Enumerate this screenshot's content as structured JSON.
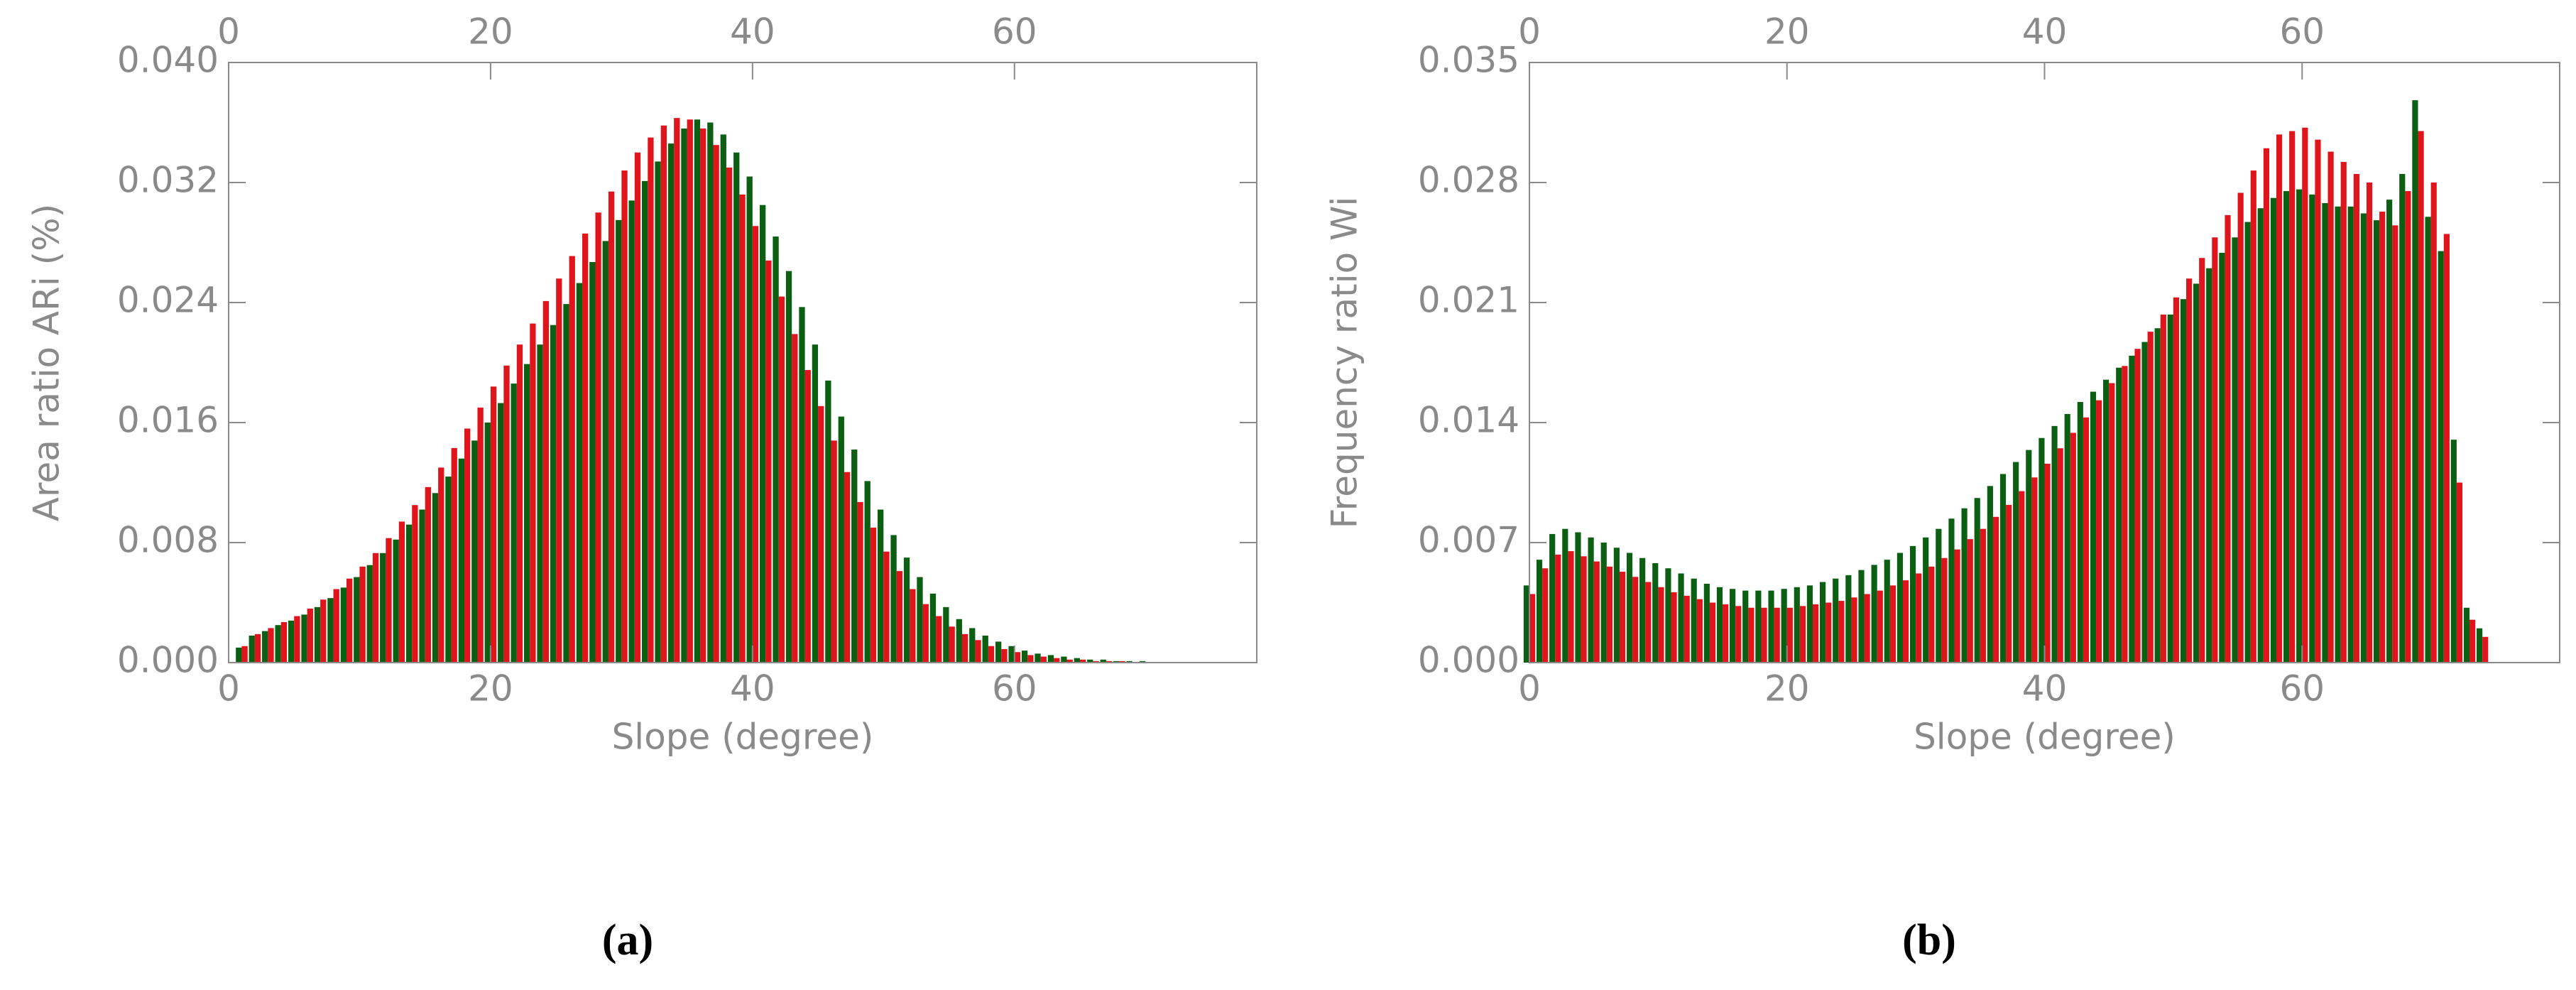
{
  "chart_data": [
    {
      "type": "bar",
      "panel_label": "(a)",
      "x_label": "Slope (degree)",
      "y_label": "Area ratio ARi (%)",
      "x": [
        1,
        2,
        3,
        4,
        5,
        6,
        7,
        8,
        9,
        10,
        11,
        12,
        13,
        14,
        15,
        16,
        17,
        18,
        19,
        20,
        21,
        22,
        23,
        24,
        25,
        26,
        27,
        28,
        29,
        30,
        31,
        32,
        33,
        34,
        35,
        36,
        37,
        38,
        39,
        40,
        41,
        42,
        43,
        44,
        45,
        46,
        47,
        48,
        49,
        50,
        51,
        52,
        53,
        54,
        55,
        56,
        57,
        58,
        59,
        60,
        61,
        62,
        63,
        64,
        65,
        66,
        67,
        68,
        69,
        70,
        71,
        72,
        73
      ],
      "series": [
        {
          "color": "#0b5f12",
          "values": [
            0.001,
            0.0018,
            0.0021,
            0.0025,
            0.0028,
            0.0032,
            0.0037,
            0.0043,
            0.005,
            0.0057,
            0.0065,
            0.0073,
            0.0082,
            0.0092,
            0.0102,
            0.0113,
            0.0124,
            0.0136,
            0.0148,
            0.016,
            0.0173,
            0.0186,
            0.0199,
            0.0212,
            0.0225,
            0.0239,
            0.0253,
            0.0267,
            0.0281,
            0.0295,
            0.0308,
            0.0321,
            0.0334,
            0.0346,
            0.0356,
            0.0362,
            0.036,
            0.0352,
            0.034,
            0.0324,
            0.0305,
            0.0284,
            0.0261,
            0.0237,
            0.0212,
            0.0188,
            0.0164,
            0.0142,
            0.0121,
            0.0102,
            0.0085,
            0.007,
            0.0057,
            0.0046,
            0.0037,
            0.0029,
            0.0023,
            0.0018,
            0.0014,
            0.0011,
            0.0008,
            0.0006,
            0.0005,
            0.0004,
            0.0003,
            0.0002,
            0.0002,
            0.0001,
            0.0001,
            0.0001,
            0,
            0,
            0
          ]
        },
        {
          "color": "#e0141b",
          "values": [
            0.0011,
            0.0019,
            0.0023,
            0.0027,
            0.0031,
            0.0036,
            0.0042,
            0.0049,
            0.0056,
            0.0064,
            0.0073,
            0.0083,
            0.0094,
            0.0105,
            0.0117,
            0.013,
            0.0143,
            0.0156,
            0.017,
            0.0184,
            0.0198,
            0.0212,
            0.0226,
            0.0241,
            0.0256,
            0.0271,
            0.0286,
            0.03,
            0.0314,
            0.0328,
            0.034,
            0.035,
            0.0358,
            0.0363,
            0.0362,
            0.0356,
            0.0345,
            0.033,
            0.0312,
            0.0291,
            0.0268,
            0.0244,
            0.0219,
            0.0195,
            0.0171,
            0.0148,
            0.0127,
            0.0107,
            0.009,
            0.0074,
            0.0061,
            0.0049,
            0.0039,
            0.0031,
            0.0024,
            0.0019,
            0.0015,
            0.0011,
            0.0009,
            0.0007,
            0.0005,
            0.0004,
            0.0003,
            0.0002,
            0.0002,
            0.0001,
            0.0001,
            0.0001,
            0,
            0,
            0,
            0,
            0
          ]
        }
      ],
      "xlim": [
        0,
        78.5
      ],
      "xticks": [
        0,
        20,
        40,
        60
      ],
      "ylim": [
        0,
        0.04
      ],
      "yticks": [
        {
          "value": 0,
          "label": "0.000"
        },
        {
          "value": 0.008,
          "label": "0.008"
        },
        {
          "value": 0.016,
          "label": "0.016"
        },
        {
          "value": 0.024,
          "label": "0.024"
        },
        {
          "value": 0.032,
          "label": "0.032"
        },
        {
          "value": 0.04,
          "label": "0.040"
        }
      ]
    },
    {
      "type": "bar",
      "panel_label": "(b)",
      "x_label": "Slope (degree)",
      "y_label": "Frequency ratio Wi",
      "x": [
        0,
        1,
        2,
        3,
        4,
        5,
        6,
        7,
        8,
        9,
        10,
        11,
        12,
        13,
        14,
        15,
        16,
        17,
        18,
        19,
        20,
        21,
        22,
        23,
        24,
        25,
        26,
        27,
        28,
        29,
        30,
        31,
        32,
        33,
        34,
        35,
        36,
        37,
        38,
        39,
        40,
        41,
        42,
        43,
        44,
        45,
        46,
        47,
        48,
        49,
        50,
        51,
        52,
        53,
        54,
        55,
        56,
        57,
        58,
        59,
        60,
        61,
        62,
        63,
        64,
        65,
        66,
        67,
        68,
        69,
        70,
        71,
        72,
        73,
        74
      ],
      "series": [
        {
          "color": "#0b5f12",
          "values": [
            0.0045,
            0.006,
            0.0075,
            0.0078,
            0.0076,
            0.0073,
            0.007,
            0.0067,
            0.0064,
            0.0061,
            0.0058,
            0.0055,
            0.0052,
            0.0049,
            0.0046,
            0.0044,
            0.0043,
            0.0042,
            0.0042,
            0.0042,
            0.0043,
            0.0044,
            0.0045,
            0.0047,
            0.0049,
            0.0051,
            0.0054,
            0.0057,
            0.006,
            0.0064,
            0.0068,
            0.0073,
            0.0078,
            0.0084,
            0.009,
            0.0096,
            0.0103,
            0.011,
            0.0117,
            0.0124,
            0.0131,
            0.0138,
            0.0145,
            0.0152,
            0.0158,
            0.0165,
            0.0172,
            0.0179,
            0.0187,
            0.0195,
            0.0203,
            0.0212,
            0.0221,
            0.023,
            0.0239,
            0.0248,
            0.0257,
            0.0265,
            0.0271,
            0.0275,
            0.0276,
            0.0273,
            0.0268,
            0.0266,
            0.0266,
            0.0262,
            0.0258,
            0.027,
            0.0285,
            0.0328,
            0.026,
            0.024,
            0.013,
            0.0032,
            0.002
          ]
        },
        {
          "color": "#e0141b",
          "values": [
            0.004,
            0.0055,
            0.0063,
            0.0065,
            0.0062,
            0.0059,
            0.0056,
            0.0053,
            0.005,
            0.0047,
            0.0044,
            0.0041,
            0.0039,
            0.0037,
            0.0035,
            0.0034,
            0.0033,
            0.0032,
            0.0032,
            0.0032,
            0.0032,
            0.0033,
            0.0034,
            0.0035,
            0.0036,
            0.0038,
            0.004,
            0.0042,
            0.0045,
            0.0048,
            0.0052,
            0.0056,
            0.0061,
            0.0066,
            0.0072,
            0.0078,
            0.0085,
            0.0092,
            0.01,
            0.0108,
            0.0116,
            0.0125,
            0.0134,
            0.0143,
            0.0153,
            0.0163,
            0.0173,
            0.0183,
            0.0193,
            0.0203,
            0.0213,
            0.0224,
            0.0236,
            0.0248,
            0.0261,
            0.0274,
            0.0287,
            0.03,
            0.0308,
            0.031,
            0.0312,
            0.0305,
            0.0298,
            0.0292,
            0.0285,
            0.028,
            0.0263,
            0.0255,
            0.0275,
            0.031,
            0.028,
            0.025,
            0.0105,
            0.0025,
            0.0015
          ]
        }
      ],
      "xlim": [
        0,
        80
      ],
      "xticks": [
        0,
        20,
        40,
        60
      ],
      "ylim": [
        0,
        0.035
      ],
      "yticks": [
        {
          "value": 0,
          "label": "0.000"
        },
        {
          "value": 0.007,
          "label": "0.007"
        },
        {
          "value": 0.014,
          "label": "0.014"
        },
        {
          "value": 0.021,
          "label": "0.021"
        },
        {
          "value": 0.028,
          "label": "0.028"
        },
        {
          "value": 0.035,
          "label": "0.035"
        }
      ]
    }
  ]
}
